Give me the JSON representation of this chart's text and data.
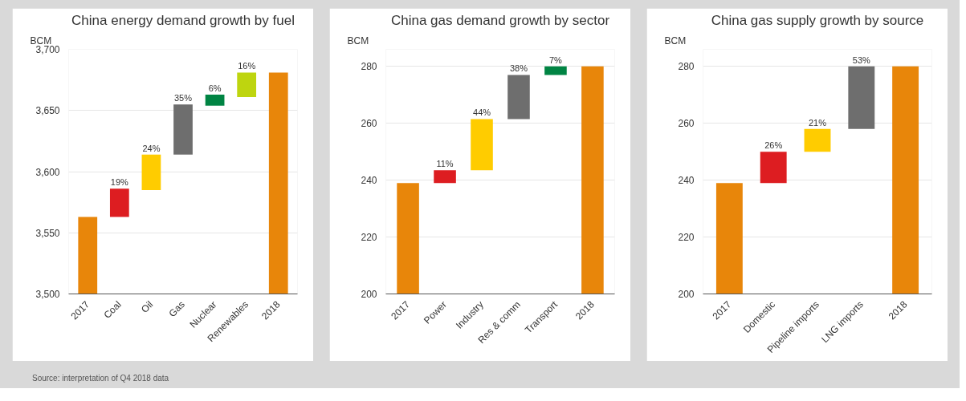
{
  "chart_data": [
    {
      "type": "bar",
      "title": "China energy demand growth by fuel",
      "ylabel": "BCM",
      "categories": [
        "2017",
        "Coal",
        "Oil",
        "Gas",
        "Nuclear",
        "Renewables",
        "2018"
      ],
      "base": [
        3500,
        3563,
        3585,
        3614,
        3654,
        3661,
        3500
      ],
      "values": [
        63,
        23,
        29,
        41,
        9,
        20,
        181
      ],
      "colors": [
        "#e8860a",
        "#dd1d21",
        "#ffcc00",
        "#6e6e6e",
        "#008443",
        "#bed50f",
        "#e8860a"
      ],
      "annotations": [
        {
          "text": "19%",
          "x": "Coal",
          "y": 3586
        },
        {
          "text": "24%",
          "x": "Oil",
          "y": 3614
        },
        {
          "text": "35%",
          "x": "Gas",
          "y": 3655
        },
        {
          "text": "6%",
          "x": "Nuclear",
          "y": 3663
        },
        {
          "text": "16%",
          "x": "Renewables",
          "y": 3681
        },
        "Source: interpretation of Q4 2018 data"
      ],
      "ylim": [
        3500,
        3700
      ],
      "yticks": [
        {
          "value": 3500,
          "label": "3,500"
        },
        {
          "value": 3550,
          "label": "3,550"
        },
        {
          "value": 3600,
          "label": "3,600"
        },
        {
          "value": 3650,
          "label": "3,650"
        },
        {
          "value": 3700,
          "label": "3,700"
        }
      ],
      "grid": "y"
    },
    {
      "type": "bar",
      "title": "China gas demand growth by sector",
      "ylabel": "BCM",
      "categories": [
        "2017",
        "Power",
        "Industry",
        "Res & comm",
        "Transport",
        "2018"
      ],
      "base": [
        200,
        239,
        243.5,
        261.5,
        277,
        200
      ],
      "values": [
        39,
        4.5,
        18,
        15.5,
        3,
        80
      ],
      "colors": [
        "#e8860a",
        "#dd1d21",
        "#ffcc00",
        "#6e6e6e",
        "#008443",
        "#e8860a"
      ],
      "annotations": [
        {
          "text": "11%",
          "x": "Power",
          "y": 243.5
        },
        {
          "text": "44%",
          "x": "Industry",
          "y": 261.5
        },
        {
          "text": "38%",
          "x": "Res & comm",
          "y": 277
        },
        {
          "text": "7%",
          "x": "Transport",
          "y": 280
        }
      ],
      "ylim": [
        200,
        286
      ],
      "yticks": [
        200,
        220,
        240,
        260,
        280
      ],
      "grid": "y"
    },
    {
      "type": "bar",
      "title": "China gas supply growth by source",
      "ylabel": "BCM",
      "categories": [
        "2017",
        "Domestic",
        "Pipeline imports",
        "LNG imports",
        "2018"
      ],
      "base": [
        200,
        239,
        250,
        258,
        200
      ],
      "values": [
        39,
        11,
        8,
        22,
        80
      ],
      "colors": [
        "#e8860a",
        "#dd1d21",
        "#ffcc00",
        "#6e6e6e",
        "#e8860a"
      ],
      "annotations": [
        {
          "text": "26%",
          "x": "Domestic",
          "y": 250
        },
        {
          "text": "21%",
          "x": "Pipeline imports",
          "y": 258
        },
        {
          "text": "53%",
          "x": "LNG imports",
          "y": 280
        }
      ],
      "ylim": [
        200,
        286
      ],
      "yticks": [
        200,
        220,
        240,
        260,
        280
      ],
      "grid": "y"
    }
  ]
}
